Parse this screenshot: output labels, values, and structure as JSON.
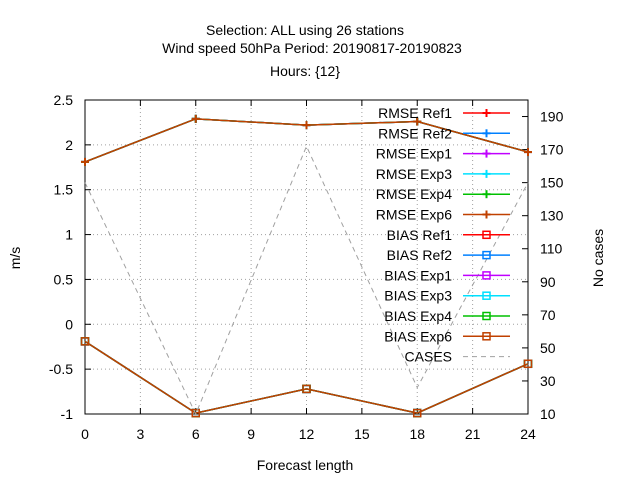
{
  "chart_data": {
    "type": "line",
    "title_lines": [
      "Selection: ALL using    26 stations",
      "Wind speed 50hPa   Period: 20190817-20190823",
      "Hours: {12}"
    ],
    "xlabel": "Forecast length",
    "ylabel": "m/s",
    "y2label": "No cases",
    "xlim": [
      0,
      24
    ],
    "ylim": [
      -1,
      2.5
    ],
    "y2lim": [
      10,
      200
    ],
    "xticks": [
      0,
      3,
      6,
      9,
      12,
      15,
      18,
      21,
      24
    ],
    "yticks": [
      -1,
      -0.5,
      0,
      0.5,
      1,
      1.5,
      2,
      2.5
    ],
    "y2ticks": [
      10,
      30,
      50,
      70,
      90,
      110,
      130,
      150,
      170,
      190
    ],
    "grid": true,
    "legend_position": "top-right",
    "x": [
      0,
      6,
      12,
      18,
      24
    ],
    "series": [
      {
        "name": "RMSE Ref1",
        "color": "#ff0000",
        "marker": "plus",
        "values": [
          1.81,
          2.29,
          2.22,
          2.26,
          1.92
        ]
      },
      {
        "name": "RMSE Ref2",
        "color": "#0080ff",
        "marker": "plus",
        "values": [
          1.81,
          2.29,
          2.22,
          2.26,
          1.92
        ]
      },
      {
        "name": "RMSE Exp1",
        "color": "#c000ff",
        "marker": "plus",
        "values": [
          1.81,
          2.29,
          2.22,
          2.26,
          1.92
        ]
      },
      {
        "name": "RMSE Exp3",
        "color": "#00e0ff",
        "marker": "plus",
        "values": [
          1.81,
          2.29,
          2.22,
          2.26,
          1.92
        ]
      },
      {
        "name": "RMSE Exp4",
        "color": "#00c000",
        "marker": "plus",
        "values": [
          1.81,
          2.29,
          2.22,
          2.26,
          1.92
        ]
      },
      {
        "name": "RMSE Exp6",
        "color": "#c04000",
        "marker": "plus",
        "values": [
          1.81,
          2.29,
          2.22,
          2.26,
          1.92
        ]
      },
      {
        "name": "BIAS Ref1",
        "color": "#ff0000",
        "marker": "square",
        "values": [
          -0.19,
          -0.99,
          -0.72,
          -0.99,
          -0.44
        ]
      },
      {
        "name": "BIAS Ref2",
        "color": "#0080ff",
        "marker": "square",
        "values": [
          -0.19,
          -0.99,
          -0.72,
          -0.99,
          -0.44
        ]
      },
      {
        "name": "BIAS Exp1",
        "color": "#c000ff",
        "marker": "square",
        "values": [
          -0.19,
          -0.99,
          -0.72,
          -0.99,
          -0.44
        ]
      },
      {
        "name": "BIAS Exp3",
        "color": "#00e0ff",
        "marker": "square",
        "values": [
          -0.19,
          -0.99,
          -0.72,
          -0.99,
          -0.44
        ]
      },
      {
        "name": "BIAS Exp4",
        "color": "#00c000",
        "marker": "square",
        "values": [
          -0.19,
          -0.99,
          -0.72,
          -0.99,
          -0.44
        ]
      },
      {
        "name": "BIAS Exp6",
        "color": "#c04000",
        "marker": "square",
        "values": [
          -0.19,
          -0.99,
          -0.72,
          -0.99,
          -0.44
        ]
      },
      {
        "name": "CASES",
        "color": "#a0a0a0",
        "marker": "none",
        "dashed": true,
        "axis": "y2",
        "values": [
          150,
          10,
          172,
          26,
          150
        ]
      }
    ]
  }
}
